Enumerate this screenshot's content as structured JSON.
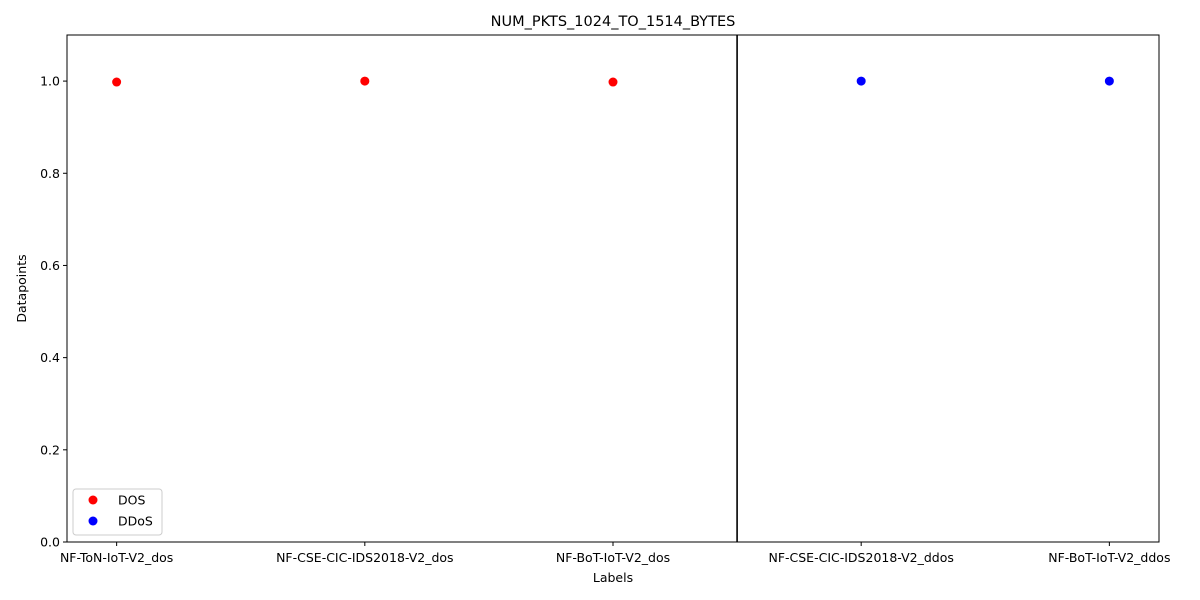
{
  "chart_data": {
    "type": "scatter",
    "title": "NUM_PKTS_1024_TO_1514_BYTES",
    "xlabel": "Labels",
    "ylabel": "Datapoints",
    "categories": [
      "NF-ToN-IoT-V2_dos",
      "NF-CSE-CIC-IDS2018-V2_dos",
      "NF-BoT-IoT-V2_dos",
      "NF-CSE-CIC-IDS2018-V2_ddos",
      "NF-BoT-IoT-V2_ddos"
    ],
    "ylim": [
      0,
      1.1
    ],
    "yticks": [
      "0.0",
      "0.2",
      "0.4",
      "0.6",
      "0.8",
      "1.0"
    ],
    "yticks_values": [
      0,
      0.2,
      0.4,
      0.6,
      0.8,
      1.0
    ],
    "separator_x": 2.5,
    "grid": false,
    "legend_position": "lower-left",
    "series": [
      {
        "name": "DOS",
        "color": "#ff0000",
        "points": [
          [
            0,
            0.998
          ],
          [
            1,
            1.0
          ],
          [
            2,
            0.998
          ]
        ]
      },
      {
        "name": "DDoS",
        "color": "#0000ff",
        "points": [
          [
            3,
            1.0
          ],
          [
            4,
            1.0
          ]
        ]
      }
    ]
  }
}
